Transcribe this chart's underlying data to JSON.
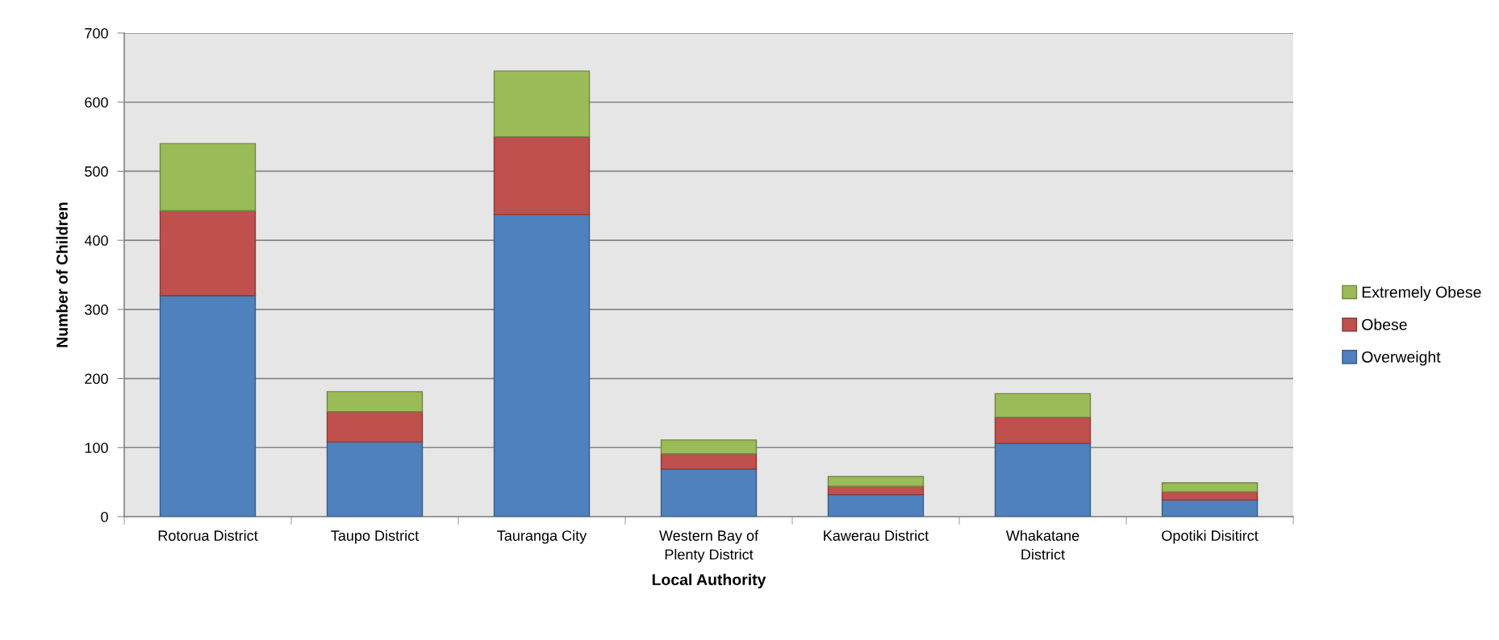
{
  "chart_data": {
    "type": "bar",
    "stacked": true,
    "xlabel": "Local Authority",
    "ylabel": "Number of Children",
    "categories": [
      "Rotorua District",
      "Taupo District",
      "Tauranga City",
      "Western Bay of Plenty District",
      "Kawerau District",
      "Whakatane District",
      "Opotiki Disitirct"
    ],
    "series": [
      {
        "name": "Overweight",
        "color": "#4f81bd",
        "values": [
          320,
          108,
          437,
          69,
          32,
          106,
          24
        ]
      },
      {
        "name": "Obese",
        "color": "#c0504d",
        "values": [
          123,
          44,
          113,
          22,
          12,
          38,
          12
        ]
      },
      {
        "name": "Extremely Obese",
        "color": "#9bbb59",
        "values": [
          97,
          29,
          95,
          20,
          14,
          34,
          13
        ]
      }
    ],
    "ylim": [
      0,
      700
    ],
    "yticks": [
      0,
      100,
      200,
      300,
      400,
      500,
      600,
      700
    ],
    "grid": "y",
    "legend": "right"
  }
}
